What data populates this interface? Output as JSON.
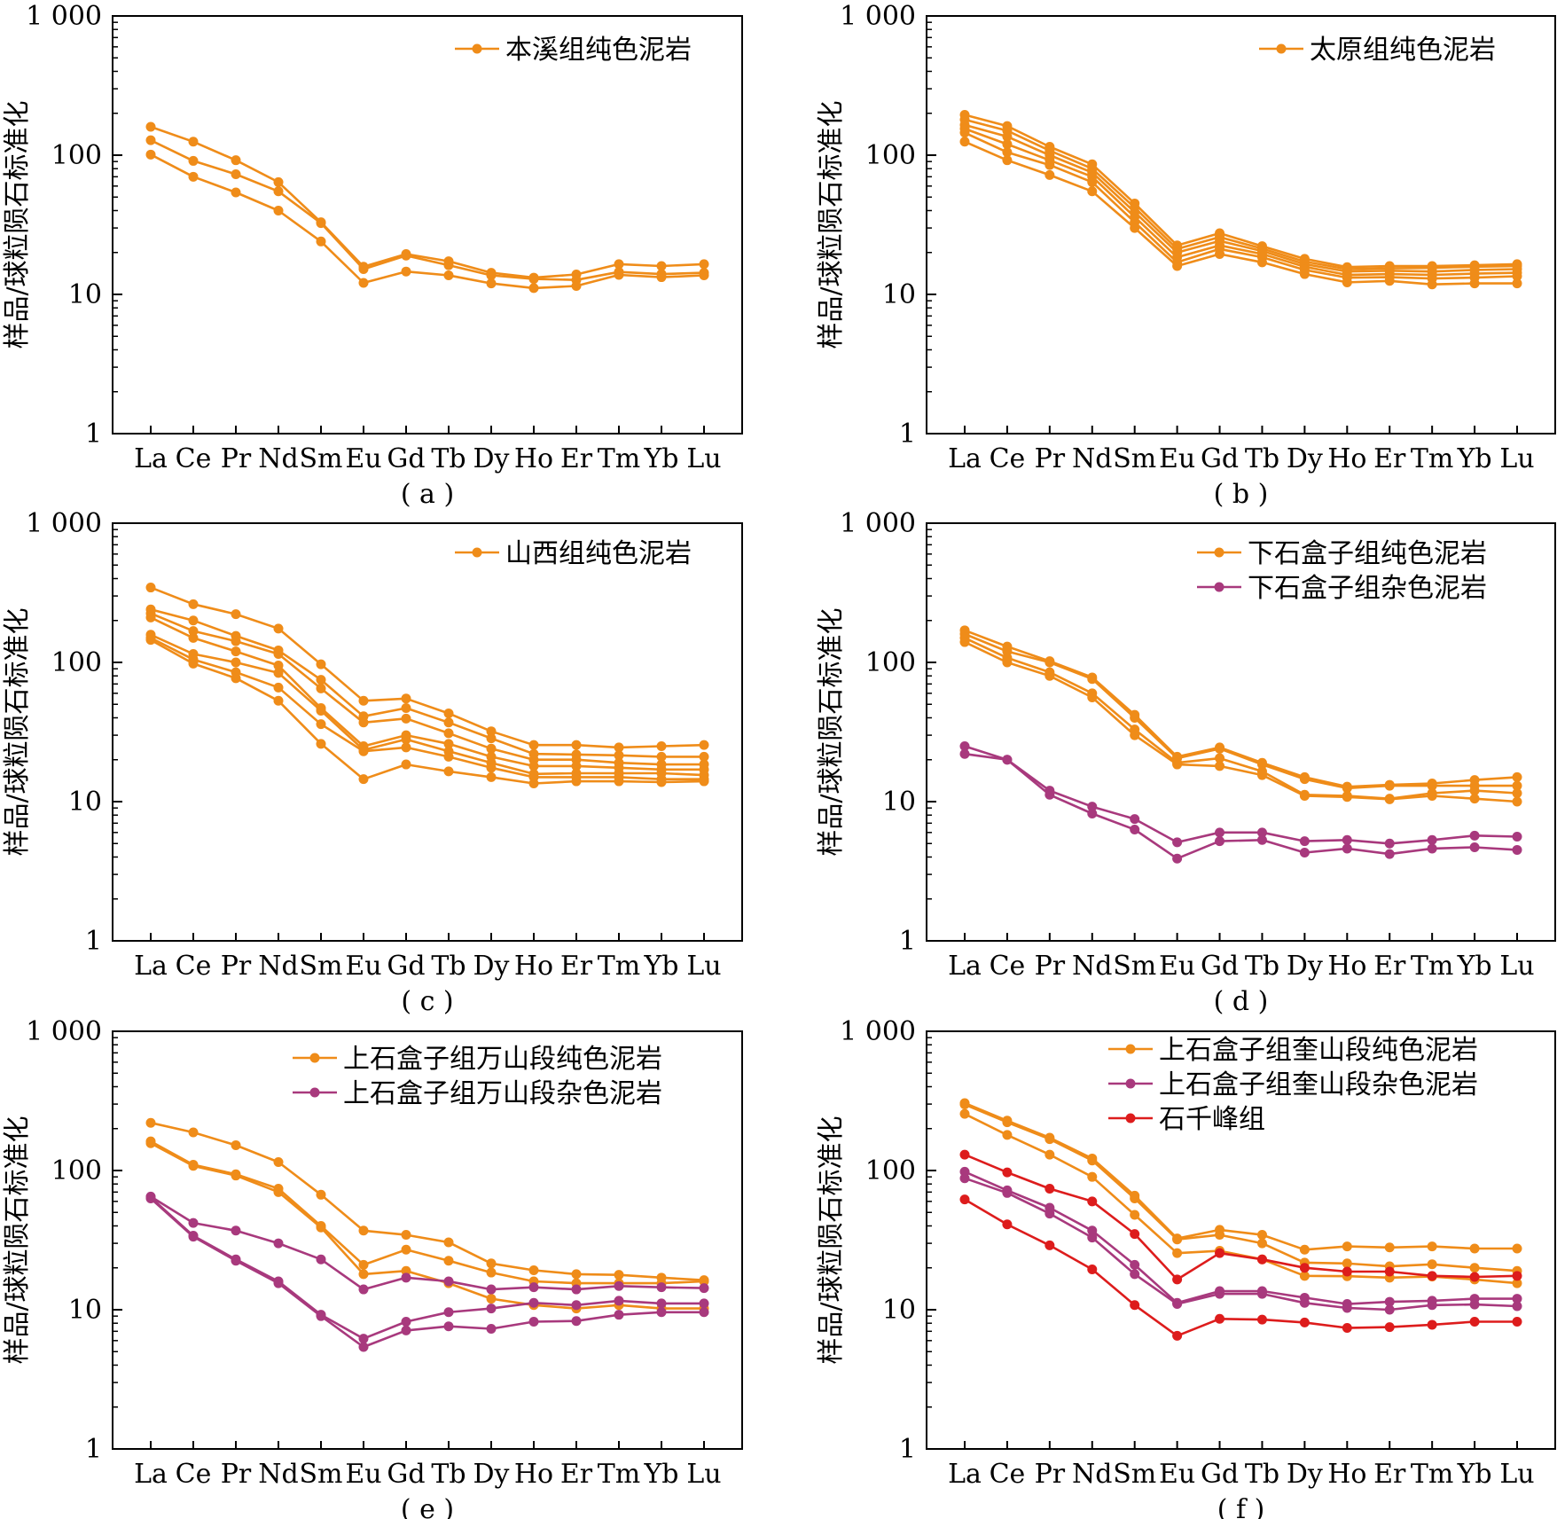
{
  "colors": {
    "orange": "#ef8c19",
    "purple": "#a8397d",
    "red": "#dd1c1c",
    "axis": "#000000"
  },
  "chart_data": [
    {
      "type": "line",
      "panel_label": "( a )",
      "ylabel": "样品/球粒陨石标准化",
      "yscale": "log",
      "ylim": [
        1,
        1000
      ],
      "ytick_labels": [
        "1",
        "10",
        "100",
        "1 000"
      ],
      "categories": [
        "La",
        "Ce",
        "Pr",
        "Nd",
        "Sm",
        "Eu",
        "Gd",
        "Tb",
        "Dy",
        "Ho",
        "Er",
        "Tm",
        "Yb",
        "Lu"
      ],
      "legend": [
        {
          "label": "本溪组纯色泥岩",
          "color": "orange"
        }
      ],
      "series": [
        {
          "group": "本溪组纯色泥岩",
          "color": "orange",
          "values": [
            160,
            125,
            92,
            64,
            33,
            15.8,
            19.5,
            17.3,
            14.3,
            13.2,
            13.9,
            16.5,
            16,
            16.5
          ]
        },
        {
          "group": "本溪组纯色泥岩",
          "color": "orange",
          "values": [
            128,
            91,
            73,
            55,
            32.5,
            15.2,
            19,
            16.2,
            13.7,
            12.9,
            12.7,
            14.5,
            14,
            14.3
          ]
        },
        {
          "group": "本溪组纯色泥岩",
          "color": "orange",
          "values": [
            101,
            70,
            54,
            40,
            24,
            12.1,
            14.6,
            13.7,
            12,
            11.1,
            11.5,
            13.8,
            13.3,
            13.7
          ]
        }
      ]
    },
    {
      "type": "line",
      "panel_label": "( b )",
      "ylabel": "样品/球粒陨石标准化",
      "yscale": "log",
      "ylim": [
        1,
        1000
      ],
      "ytick_labels": [
        "1",
        "10",
        "100",
        "1 000"
      ],
      "categories": [
        "La",
        "Ce",
        "Pr",
        "Nd",
        "Sm",
        "Eu",
        "Gd",
        "Tb",
        "Dy",
        "Ho",
        "Er",
        "Tm",
        "Yb",
        "Lu"
      ],
      "legend": [
        {
          "label": "太原组纯色泥岩",
          "color": "orange"
        }
      ],
      "series": [
        {
          "group": "太原组纯色泥岩",
          "color": "orange",
          "values": [
            195,
            162,
            115,
            86,
            45,
            22.5,
            27.5,
            22.2,
            18,
            15.7,
            16,
            16,
            16.2,
            16.5
          ]
        },
        {
          "group": "太原组纯色泥岩",
          "color": "orange",
          "values": [
            180,
            150,
            108,
            80,
            42,
            21.2,
            25.8,
            21.3,
            17.2,
            15.2,
            15.4,
            15.5,
            15.8,
            16
          ]
        },
        {
          "group": "太原组纯色泥岩",
          "color": "orange",
          "values": [
            165,
            136,
            100,
            75,
            39,
            20,
            24.2,
            20.5,
            16.5,
            14.6,
            14.8,
            14.6,
            15,
            15.2
          ]
        },
        {
          "group": "太原组纯色泥岩",
          "color": "orange",
          "values": [
            155,
            120,
            92,
            70,
            36,
            18.5,
            22.5,
            19.5,
            15.8,
            13.8,
            14,
            13.8,
            14.1,
            14.3
          ]
        },
        {
          "group": "太原组纯色泥岩",
          "color": "orange",
          "values": [
            145,
            105,
            85,
            64,
            33,
            17,
            21.2,
            18.5,
            15,
            13.2,
            13.3,
            13,
            13.2,
            13.5
          ]
        },
        {
          "group": "太原组纯色泥岩",
          "color": "orange",
          "values": [
            125,
            92,
            72,
            55,
            30,
            16,
            19.5,
            17,
            14,
            12.2,
            12.5,
            11.8,
            12,
            12
          ]
        }
      ]
    },
    {
      "type": "line",
      "panel_label": "( c )",
      "ylabel": "样品/球粒陨石标准化",
      "yscale": "log",
      "ylim": [
        1,
        1000
      ],
      "ytick_labels": [
        "1",
        "10",
        "100",
        "1 000"
      ],
      "categories": [
        "La",
        "Ce",
        "Pr",
        "Nd",
        "Sm",
        "Eu",
        "Gd",
        "Tb",
        "Dy",
        "Ho",
        "Er",
        "Tm",
        "Yb",
        "Lu"
      ],
      "legend": [
        {
          "label": "山西组纯色泥岩",
          "color": "orange"
        }
      ],
      "series": [
        {
          "group": "山西组纯色泥岩",
          "color": "orange",
          "values": [
            345,
            262,
            222,
            175,
            97,
            53,
            55,
            43,
            32,
            25.5,
            25.5,
            24.5,
            25,
            25.5
          ]
        },
        {
          "group": "山西组纯色泥岩",
          "color": "orange",
          "values": [
            240,
            200,
            155,
            122,
            75,
            41,
            47,
            37,
            28.5,
            22,
            21.8,
            21.5,
            21,
            21
          ]
        },
        {
          "group": "山西组纯色泥岩",
          "color": "orange",
          "values": [
            225,
            168,
            142,
            115,
            65,
            37,
            39.5,
            31,
            24,
            20,
            20,
            19,
            18.5,
            18.5
          ]
        },
        {
          "group": "山西组纯色泥岩",
          "color": "orange",
          "values": [
            210,
            150,
            120,
            95,
            47,
            25,
            30,
            26,
            21,
            18,
            18,
            17.5,
            17,
            17
          ]
        },
        {
          "group": "山西组纯色泥岩",
          "color": "orange",
          "values": [
            158,
            115,
            100,
            84,
            45,
            23.5,
            28,
            23,
            19,
            15.8,
            16,
            16,
            16,
            15.5
          ]
        },
        {
          "group": "山西组纯色泥岩",
          "color": "orange",
          "values": [
            150,
            105,
            85,
            66,
            36,
            23,
            24.5,
            21,
            17.5,
            15,
            15,
            15,
            14.5,
            14.5
          ]
        },
        {
          "group": "山西组纯色泥岩",
          "color": "orange",
          "values": [
            145,
            98,
            77,
            53,
            26,
            14.5,
            18.5,
            16.5,
            15,
            13.5,
            14,
            14,
            13.8,
            14
          ]
        }
      ]
    },
    {
      "type": "line",
      "panel_label": "( d )",
      "ylabel": "样品/球粒陨石标准化",
      "yscale": "log",
      "ylim": [
        1,
        1000
      ],
      "ytick_labels": [
        "1",
        "10",
        "100",
        "1 000"
      ],
      "categories": [
        "La",
        "Ce",
        "Pr",
        "Nd",
        "Sm",
        "Eu",
        "Gd",
        "Tb",
        "Dy",
        "Ho",
        "Er",
        "Tm",
        "Yb",
        "Lu"
      ],
      "legend": [
        {
          "label": "下石盒子组纯色泥岩",
          "color": "orange"
        },
        {
          "label": "下石盒子组杂色泥岩",
          "color": "purple"
        }
      ],
      "series": [
        {
          "group": "下石盒子组纯色泥岩",
          "color": "orange",
          "values": [
            170,
            130,
            102,
            78,
            42,
            21,
            24.5,
            19,
            15,
            12.8,
            13.2,
            13.5,
            14.3,
            15
          ]
        },
        {
          "group": "下石盒子组纯色泥岩",
          "color": "orange",
          "values": [
            160,
            120,
            100,
            76,
            40,
            20.5,
            24,
            18.5,
            14.5,
            12.5,
            13,
            13,
            13,
            13
          ]
        },
        {
          "group": "下石盒子组纯色泥岩",
          "color": "orange",
          "values": [
            150,
            108,
            85,
            60,
            33,
            19,
            20.5,
            16.5,
            11.2,
            11,
            10.5,
            11.5,
            12,
            11.5
          ]
        },
        {
          "group": "下石盒子组纯色泥岩",
          "color": "orange",
          "values": [
            140,
            100,
            80,
            56,
            30,
            18.5,
            18,
            15.5,
            11,
            10.8,
            10.4,
            11,
            10.5,
            10
          ]
        },
        {
          "group": "下石盒子组杂色泥岩",
          "color": "purple",
          "values": [
            25,
            20,
            12,
            9.2,
            7.5,
            5.1,
            6,
            6,
            5.2,
            5.3,
            5,
            5.3,
            5.7,
            5.6
          ]
        },
        {
          "group": "下石盒子组杂色泥岩",
          "color": "purple",
          "values": [
            22,
            20,
            11.2,
            8.2,
            6.3,
            3.9,
            5.2,
            5.3,
            4.3,
            4.6,
            4.2,
            4.6,
            4.7,
            4.5
          ]
        }
      ]
    },
    {
      "type": "line",
      "panel_label": "( e )",
      "ylabel": "样品/球粒陨石标准化",
      "yscale": "log",
      "ylim": [
        1,
        1000
      ],
      "ytick_labels": [
        "1",
        "10",
        "100",
        "1 000"
      ],
      "categories": [
        "La",
        "Ce",
        "Pr",
        "Nd",
        "Sm",
        "Eu",
        "Gd",
        "Tb",
        "Dy",
        "Ho",
        "Er",
        "Tm",
        "Yb",
        "Lu"
      ],
      "legend": [
        {
          "label": "上石盒子组万山段纯色泥岩",
          "color": "orange"
        },
        {
          "label": "上石盒子组万山段杂色泥岩",
          "color": "purple"
        }
      ],
      "series": [
        {
          "group": "上石盒子组万山段纯色泥岩",
          "color": "orange",
          "values": [
            220,
            188,
            152,
            115,
            67,
            37,
            34.5,
            30.5,
            21.5,
            19.2,
            18,
            17.8,
            17,
            16.3
          ]
        },
        {
          "group": "上石盒子组万山段纯色泥岩",
          "color": "orange",
          "values": [
            162,
            110,
            94,
            74,
            40,
            21,
            27,
            22.5,
            18.5,
            16,
            15.5,
            15.5,
            15.5,
            16
          ]
        },
        {
          "group": "上石盒子组万山段纯色泥岩",
          "color": "orange",
          "values": [
            157,
            108,
            92,
            70,
            39,
            18,
            19,
            15.5,
            12,
            10.8,
            10.2,
            10.8,
            10.2,
            10.2
          ]
        },
        {
          "group": "上石盒子组万山段杂色泥岩",
          "color": "purple",
          "values": [
            65,
            42,
            37,
            30,
            23,
            14,
            17,
            16,
            14,
            14.5,
            14,
            14.8,
            14.5,
            14.3
          ]
        },
        {
          "group": "上石盒子组万山段杂色泥岩",
          "color": "purple",
          "values": [
            64,
            34,
            23,
            16,
            9.2,
            6.2,
            8.2,
            9.6,
            10.2,
            11.2,
            10.8,
            11.6,
            11.1,
            11.1
          ]
        },
        {
          "group": "上石盒子组万山段杂色泥岩",
          "color": "purple",
          "values": [
            63,
            33.5,
            22.5,
            15.5,
            9,
            5.4,
            7.1,
            7.6,
            7.3,
            8.2,
            8.3,
            9.2,
            9.6,
            9.6
          ]
        }
      ]
    },
    {
      "type": "line",
      "panel_label": "( f )",
      "ylabel": "样品/球粒陨石标准化",
      "yscale": "log",
      "ylim": [
        1,
        1000
      ],
      "ytick_labels": [
        "1",
        "10",
        "100",
        "1 000"
      ],
      "categories": [
        "La",
        "Ce",
        "Pr",
        "Nd",
        "Sm",
        "Eu",
        "Gd",
        "Tb",
        "Dy",
        "Ho",
        "Er",
        "Tm",
        "Yb",
        "Lu"
      ],
      "legend": [
        {
          "label": "上石盒子组奎山段纯色泥岩",
          "color": "orange"
        },
        {
          "label": "上石盒子组奎山段杂色泥岩",
          "color": "purple"
        },
        {
          "label": "石千峰组",
          "color": "red"
        }
      ],
      "series": [
        {
          "group": "上石盒子组奎山段纯色泥岩",
          "color": "orange",
          "values": [
            305,
            228,
            172,
            122,
            66,
            32.5,
            37.5,
            34.5,
            27,
            28.5,
            28,
            28.5,
            27.5,
            27.5
          ]
        },
        {
          "group": "上石盒子组奎山段纯色泥岩",
          "color": "orange",
          "values": [
            298,
            222,
            168,
            118,
            63,
            32,
            34.5,
            30,
            21.8,
            21.5,
            20.5,
            21.2,
            20,
            19
          ]
        },
        {
          "group": "上石盒子组奎山段纯色泥岩",
          "color": "orange",
          "values": [
            255,
            180,
            130,
            90,
            48,
            25.5,
            26.5,
            23,
            17.5,
            17.4,
            17,
            17.3,
            16.5,
            15.5
          ]
        },
        {
          "group": "上石盒子组奎山段杂色泥岩",
          "color": "purple",
          "values": [
            98,
            72,
            54,
            37,
            21,
            11.2,
            13.6,
            13.6,
            12.2,
            11,
            11.4,
            11.6,
            12,
            12
          ]
        },
        {
          "group": "上石盒子组奎山段杂色泥岩",
          "color": "purple",
          "values": [
            88,
            69,
            49,
            33,
            18,
            11,
            13,
            13,
            11.2,
            10.3,
            10,
            10.8,
            10.9,
            10.6
          ]
        },
        {
          "group": "石千峰组",
          "color": "red",
          "values": [
            130,
            97,
            74,
            60,
            35,
            16.5,
            25.5,
            23,
            20,
            18.8,
            18.8,
            17.5,
            17.2,
            17.5
          ]
        },
        {
          "group": "石千峰组",
          "color": "red",
          "values": [
            62,
            41,
            29,
            19.5,
            10.8,
            6.5,
            8.6,
            8.5,
            8.1,
            7.4,
            7.5,
            7.8,
            8.2,
            8.2
          ]
        }
      ]
    }
  ]
}
